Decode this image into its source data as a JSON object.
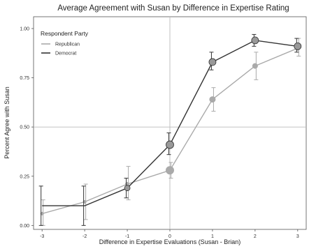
{
  "chart_data": {
    "type": "line",
    "title": "Average Agreement with Susan by Difference in Expertise Rating",
    "xlabel": "Difference in Expertise Evaluations (Susan - Brian)",
    "ylabel": "Percent Agree with Susan",
    "x": [
      -3,
      -2,
      -1,
      0,
      1,
      2,
      3
    ],
    "x_tick_labels": [
      "-3",
      "-2",
      "-1",
      "0",
      "1",
      "2",
      "3"
    ],
    "xlim": [
      -3.2,
      3.2
    ],
    "ylim": [
      -0.02,
      1.06
    ],
    "y_ticks": [
      0.0,
      0.25,
      0.5,
      0.75,
      1.0
    ],
    "y_tick_labels": [
      "0.00",
      "0.25",
      "0.50",
      "0.75",
      "1.00"
    ],
    "reference_lines": {
      "x": 0,
      "y": 0.5
    },
    "grid": false,
    "legend": {
      "title": "Respondent Party",
      "position": "top-left",
      "entries": [
        "Republican",
        "Democrat"
      ]
    },
    "series": [
      {
        "name": "Republican",
        "color": "#aaaaaa",
        "values": [
          0.06,
          0.12,
          0.21,
          0.28,
          0.64,
          0.81,
          0.9
        ],
        "lower": [
          0.0,
          0.03,
          0.13,
          0.24,
          0.58,
          0.74,
          0.86
        ],
        "upper": [
          0.13,
          0.21,
          0.3,
          0.32,
          0.7,
          0.88,
          0.95
        ],
        "marker_size": [
          2.5,
          2.5,
          3,
          6,
          4.5,
          4,
          3.5
        ]
      },
      {
        "name": "Democrat",
        "color": "#333333",
        "values": [
          0.1,
          0.1,
          0.19,
          0.41,
          0.83,
          0.94,
          0.91
        ],
        "lower": [
          0.0,
          0.0,
          0.14,
          0.36,
          0.79,
          0.91,
          0.88
        ],
        "upper": [
          0.2,
          0.2,
          0.24,
          0.47,
          0.88,
          0.97,
          0.95
        ],
        "marker_color": "#999999",
        "marker_size": [
          0,
          0,
          4,
          5.5,
          5,
          5,
          5
        ]
      }
    ]
  }
}
